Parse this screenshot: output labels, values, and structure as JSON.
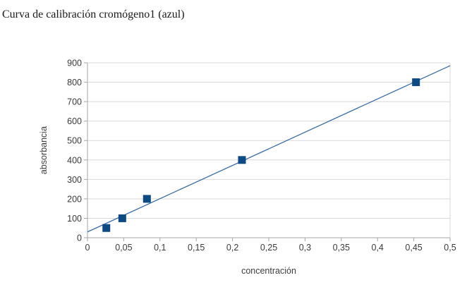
{
  "page": {
    "background": "#ffffff"
  },
  "chart_data": {
    "type": "scatter",
    "title": "Curva de calibración cromógeno1 (azul)",
    "xlabel": "concentración",
    "ylabel": "absorbancia",
    "xlim": [
      0,
      0.5
    ],
    "ylim": [
      0,
      900
    ],
    "grid": "horizontal-only",
    "legend": "none",
    "x_tick_values": [
      0,
      0.05,
      0.1,
      0.15,
      0.2,
      0.25,
      0.3,
      0.35,
      0.4,
      0.45,
      0.5
    ],
    "x_tick_labels": [
      "0",
      "0,05",
      "0,1",
      "0,15",
      "0,2",
      "0,25",
      "0,3",
      "0,35",
      "0,4",
      "0,45",
      "0,5"
    ],
    "y_tick_values": [
      0,
      100,
      200,
      300,
      400,
      500,
      600,
      700,
      800,
      900
    ],
    "y_tick_labels": [
      "0",
      "100",
      "200",
      "300",
      "400",
      "500",
      "600",
      "700",
      "800",
      "900"
    ],
    "series": [
      {
        "name": "trendline",
        "type": "line",
        "color": "#3a6ea5",
        "points": [
          {
            "x": 0,
            "y": 30
          },
          {
            "x": 0.5,
            "y": 885
          }
        ]
      },
      {
        "name": "calibration-points",
        "type": "scatter",
        "marker": "square",
        "color": "#0d4a83",
        "points": [
          {
            "x": 0.026,
            "y": 50
          },
          {
            "x": 0.048,
            "y": 100
          },
          {
            "x": 0.082,
            "y": 200
          },
          {
            "x": 0.213,
            "y": 400
          },
          {
            "x": 0.453,
            "y": 800
          }
        ]
      }
    ],
    "style": {
      "grid_color": "#d9d9d9",
      "axis_color": "#a6a6a6",
      "tick_label_color": "#3a3a3a",
      "axis_title_color": "#3d3d3d",
      "title_color": "#1a1a1a",
      "plot_background": "#ffffff"
    }
  }
}
